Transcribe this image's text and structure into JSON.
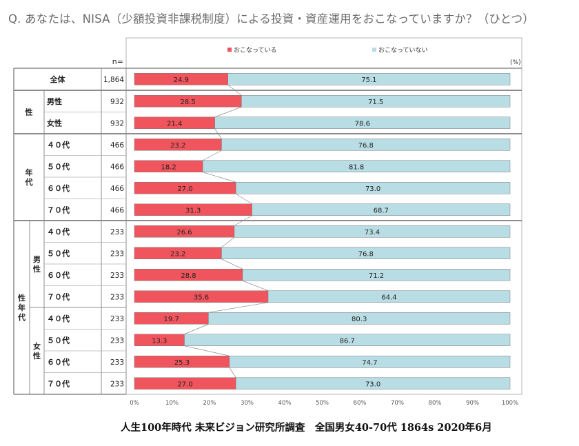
{
  "question": "Q. あなたは、NISA（少額投資非課税制度）による投資・資産運用をおこなっていますか？（ひとつ）",
  "footer": "人生100年時代 未来ビジョン研究所調査　全国男女40-70代 1864s  2020年6月",
  "chart_data": {
    "type": "bar",
    "stacked": true,
    "orientation": "horizontal",
    "unit_label": "(%)",
    "n_header": "n=",
    "legend_position": "top",
    "xlim": [
      0,
      100
    ],
    "x_ticks": [
      "0%",
      "10%",
      "20%",
      "30%",
      "40%",
      "50%",
      "60%",
      "70%",
      "80%",
      "90%",
      "100%"
    ],
    "series": [
      {
        "name": "おこなっている",
        "color": "#f0545c"
      },
      {
        "name": "おこなっていない",
        "color": "#b9dde4"
      }
    ],
    "groups": [
      {
        "label": "",
        "start": 0,
        "end": 0
      },
      {
        "label": "性",
        "start": 1,
        "end": 2
      },
      {
        "label": "年代",
        "start": 3,
        "end": 6
      },
      {
        "label": "性年代",
        "start": 7,
        "end": 14
      }
    ],
    "subgroups": [
      {
        "label": "男性",
        "start": 7,
        "end": 10
      },
      {
        "label": "女性",
        "start": 11,
        "end": 14
      }
    ],
    "rows": [
      {
        "label": "全体",
        "n": "1,864",
        "values": [
          24.9,
          75.1
        ],
        "labels": [
          "24.9",
          "75.1"
        ]
      },
      {
        "label": "男性",
        "n": "932",
        "values": [
          28.5,
          71.5
        ],
        "labels": [
          "28.5",
          "71.5"
        ]
      },
      {
        "label": "女性",
        "n": "932",
        "values": [
          21.4,
          78.6
        ],
        "labels": [
          "21.4",
          "78.6"
        ]
      },
      {
        "label": "４０代",
        "n": "466",
        "values": [
          23.2,
          76.8
        ],
        "labels": [
          "23.2",
          "76.8"
        ]
      },
      {
        "label": "５０代",
        "n": "466",
        "values": [
          18.2,
          81.8
        ],
        "labels": [
          "18.2",
          "81.8"
        ]
      },
      {
        "label": "６０代",
        "n": "466",
        "values": [
          27.0,
          73.0
        ],
        "labels": [
          "27.0",
          "73.0"
        ]
      },
      {
        "label": "７０代",
        "n": "466",
        "values": [
          31.3,
          68.7
        ],
        "labels": [
          "31.3",
          "68.7"
        ]
      },
      {
        "label": "４０代",
        "n": "233",
        "values": [
          26.6,
          73.4
        ],
        "labels": [
          "26.6",
          "73.4"
        ]
      },
      {
        "label": "５０代",
        "n": "233",
        "values": [
          23.2,
          76.8
        ],
        "labels": [
          "23.2",
          "76.8"
        ]
      },
      {
        "label": "６０代",
        "n": "233",
        "values": [
          28.8,
          71.2
        ],
        "labels": [
          "28.8",
          "71.2"
        ]
      },
      {
        "label": "７０代",
        "n": "233",
        "values": [
          35.6,
          64.4
        ],
        "labels": [
          "35.6",
          "64.4"
        ]
      },
      {
        "label": "４０代",
        "n": "233",
        "values": [
          19.7,
          80.3
        ],
        "labels": [
          "19.7",
          "80.3"
        ]
      },
      {
        "label": "５０代",
        "n": "233",
        "values": [
          13.3,
          86.7
        ],
        "labels": [
          "13.3",
          "86.7"
        ]
      },
      {
        "label": "６０代",
        "n": "233",
        "values": [
          25.3,
          74.7
        ],
        "labels": [
          "25.3",
          "74.7"
        ]
      },
      {
        "label": "７０代",
        "n": "233",
        "values": [
          27.0,
          73.0
        ],
        "labels": [
          "27.0",
          "73.0"
        ]
      }
    ]
  }
}
